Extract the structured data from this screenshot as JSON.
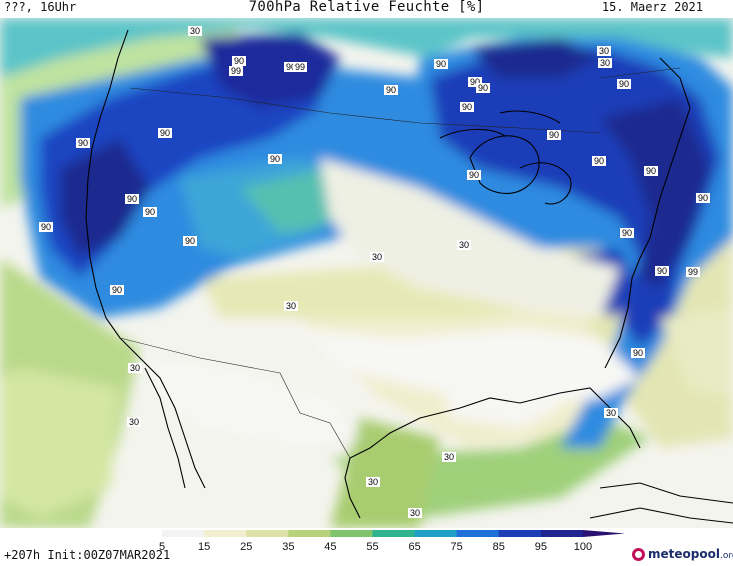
{
  "header": {
    "left": "???, 16Uhr",
    "title": "700hPa Relative Feuchte [%]",
    "date": "15. Maerz 2021"
  },
  "footer": {
    "run_info": "+207h  Init:00Z07MAR2021",
    "logo_main": "meteopool",
    "logo_suffix": ".org"
  },
  "legend": {
    "ticks": [
      "5",
      "15",
      "25",
      "35",
      "45",
      "55",
      "65",
      "75",
      "85",
      "95",
      "100"
    ],
    "colors": [
      "#ffffff",
      "#f3f3f3",
      "#f2efd0",
      "#dfe2a6",
      "#b8d27a",
      "#7fc36a",
      "#2fb38e",
      "#1fa0c8",
      "#1f6fd8",
      "#1c3fb8",
      "#1f2490",
      "#2b1272"
    ]
  },
  "contour_labels": [
    {
      "text": "30"
    },
    {
      "text": "90"
    },
    {
      "text": "99"
    },
    {
      "text": "90"
    },
    {
      "text": "99"
    },
    {
      "text": "90"
    },
    {
      "text": "90"
    },
    {
      "text": "90"
    },
    {
      "text": "90"
    },
    {
      "text": "90"
    },
    {
      "text": "90"
    },
    {
      "text": "90"
    },
    {
      "text": "90"
    },
    {
      "text": "90"
    },
    {
      "text": "90"
    },
    {
      "text": "90"
    },
    {
      "text": "90"
    },
    {
      "text": "90"
    },
    {
      "text": "90"
    },
    {
      "text": "30"
    },
    {
      "text": "30"
    },
    {
      "text": "90"
    },
    {
      "text": "90"
    },
    {
      "text": "90"
    },
    {
      "text": "90"
    },
    {
      "text": "90"
    },
    {
      "text": "90"
    },
    {
      "text": "30"
    },
    {
      "text": "30"
    },
    {
      "text": "30"
    },
    {
      "text": "90"
    },
    {
      "text": "30"
    },
    {
      "text": "30"
    },
    {
      "text": "30"
    },
    {
      "text": "30"
    },
    {
      "text": "90"
    },
    {
      "text": "99"
    },
    {
      "text": "30"
    },
    {
      "text": "30"
    }
  ]
}
